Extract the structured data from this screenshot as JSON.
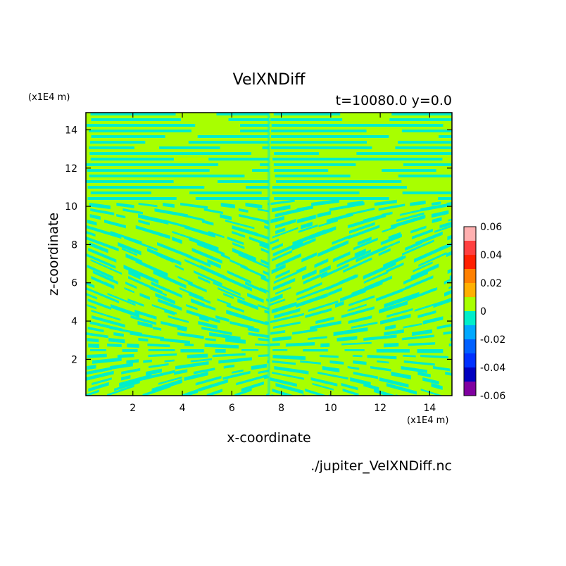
{
  "chart_data": {
    "type": "heatmap",
    "title": "VelXNDiff",
    "subtitle": "t=10080.0 y=0.0",
    "xlabel": "x-coordinate",
    "ylabel": "z-coordinate",
    "x_unit": "(x1E4 m)",
    "y_unit": "(x1E4 m)",
    "xlim": [
      0.1,
      14.9
    ],
    "ylim": [
      0.1,
      14.9
    ],
    "x_ticks": [
      2,
      4,
      6,
      8,
      10,
      12,
      14
    ],
    "y_ticks": [
      2,
      4,
      6,
      8,
      10,
      12,
      14
    ],
    "dominant_values": [
      0.0,
      -0.01
    ],
    "colorbar": {
      "ticks": [
        "0.06",
        "0.04",
        "0.02",
        "0",
        "-0.02",
        "-0.04",
        "-0.06"
      ],
      "tick_values": [
        0.06,
        0.04,
        0.02,
        0,
        -0.02,
        -0.04,
        -0.06
      ],
      "levels": [
        {
          "range": [
            0.05,
            0.06
          ],
          "color": "#ffb0b0"
        },
        {
          "range": [
            0.04,
            0.05
          ],
          "color": "#ff4040"
        },
        {
          "range": [
            0.03,
            0.04
          ],
          "color": "#ff2000"
        },
        {
          "range": [
            0.02,
            0.03
          ],
          "color": "#ff8000"
        },
        {
          "range": [
            0.01,
            0.02
          ],
          "color": "#ffb000"
        },
        {
          "range": [
            0.0,
            0.01
          ],
          "color": "#a8ff00"
        },
        {
          "range": [
            -0.01,
            0.0
          ],
          "color": "#00eeca"
        },
        {
          "range": [
            -0.02,
            -0.01
          ],
          "color": "#00a8ff"
        },
        {
          "range": [
            -0.03,
            -0.02
          ],
          "color": "#0060ff"
        },
        {
          "range": [
            -0.04,
            -0.03
          ],
          "color": "#0030ff"
        },
        {
          "range": [
            -0.05,
            -0.04
          ],
          "color": "#0000c0"
        },
        {
          "range": [
            -0.06,
            -0.05
          ],
          "color": "#8000a0"
        }
      ]
    },
    "source": "./jupiter_VelXNDiff.nc"
  }
}
